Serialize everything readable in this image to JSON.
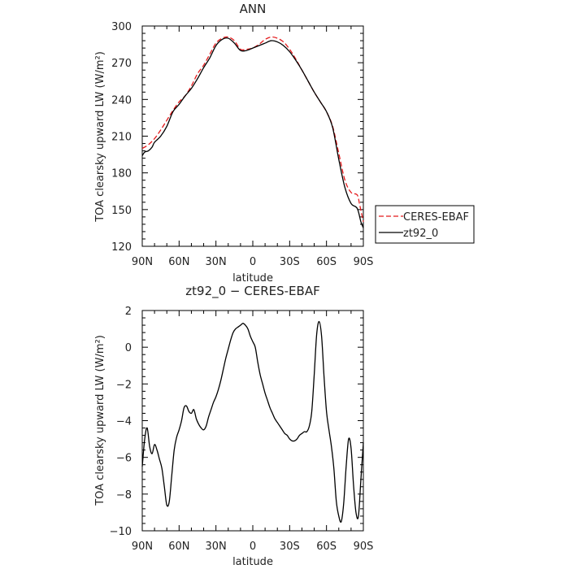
{
  "chart_data": [
    {
      "type": "line",
      "title": "ANN",
      "xlabel": "latitude",
      "ylabel": "TOA clearsky upward LW (W/m²)",
      "xlim": [
        90,
        -90
      ],
      "ylim": [
        120,
        300
      ],
      "x_ticks": [
        90,
        60,
        30,
        0,
        -30,
        -60,
        -90
      ],
      "x_tick_labels": [
        "90N",
        "60N",
        "30N",
        "0",
        "30S",
        "60S",
        "90S"
      ],
      "y_ticks": [
        120,
        150,
        180,
        210,
        240,
        270,
        300
      ],
      "y_tick_labels": [
        "120",
        "150",
        "180",
        "210",
        "240",
        "270",
        "300"
      ],
      "legend_position": "outside-right",
      "series": [
        {
          "name": "CERES-EBAF",
          "color": "#e41a1c",
          "dash": "dashed",
          "x": [
            90,
            85,
            80,
            75,
            70,
            65,
            60,
            55,
            50,
            45,
            40,
            35,
            30,
            25,
            20,
            15,
            10,
            5,
            0,
            -5,
            -10,
            -15,
            -20,
            -25,
            -30,
            -35,
            -40,
            -45,
            -50,
            -55,
            -60,
            -65,
            -70,
            -75,
            -80,
            -85,
            -87,
            -90
          ],
          "y": [
            200,
            203,
            208,
            215,
            223,
            231,
            238,
            243,
            251,
            261,
            268,
            277,
            286,
            290,
            291,
            288,
            281,
            281,
            282,
            285,
            289,
            291,
            290,
            287,
            281,
            273,
            264,
            255,
            246,
            238,
            230,
            218,
            196,
            174,
            164,
            162,
            154,
            140
          ]
        },
        {
          "name": "zt92_0",
          "color": "#000000",
          "dash": "solid",
          "x": [
            90,
            88,
            85,
            82,
            80,
            75,
            70,
            65,
            60,
            55,
            50,
            45,
            40,
            35,
            30,
            25,
            20,
            15,
            10,
            5,
            0,
            -5,
            -10,
            -15,
            -20,
            -25,
            -30,
            -35,
            -40,
            -45,
            -50,
            -55,
            -60,
            -65,
            -70,
            -75,
            -80,
            -85,
            -88,
            -90
          ],
          "y": [
            194,
            197,
            198,
            201,
            205,
            210,
            218,
            230,
            236,
            243,
            249,
            257,
            266,
            274,
            284,
            289,
            290,
            286,
            280,
            280,
            282,
            284,
            286,
            288,
            287,
            284,
            279,
            272,
            264,
            255,
            246,
            238,
            230,
            217,
            191,
            168,
            155,
            151,
            140,
            135
          ]
        }
      ]
    },
    {
      "type": "line",
      "title": "zt92_0 − CERES-EBAF",
      "xlabel": "latitude",
      "ylabel": "TOA clearsky upward LW (W/m²)",
      "xlim": [
        90,
        -90
      ],
      "ylim": [
        -10,
        2
      ],
      "x_ticks": [
        90,
        60,
        30,
        0,
        -30,
        -60,
        -90
      ],
      "x_tick_labels": [
        "90N",
        "60N",
        "30N",
        "0",
        "30S",
        "60S",
        "90S"
      ],
      "y_ticks": [
        -10,
        -8,
        -6,
        -4,
        -2,
        0,
        2
      ],
      "y_tick_labels": [
        "−10",
        "−8",
        "−6",
        "−4",
        "−2",
        "0",
        "2"
      ],
      "series": [
        {
          "color": "#000000",
          "dash": "solid",
          "x": [
            90,
            88,
            86,
            84,
            82,
            80,
            78,
            76,
            74,
            72,
            70,
            68,
            66,
            64,
            62,
            60,
            58,
            56,
            54,
            52,
            50,
            48,
            46,
            44,
            42,
            40,
            38,
            36,
            34,
            32,
            30,
            28,
            26,
            24,
            22,
            20,
            18,
            16,
            14,
            12,
            10,
            8,
            6,
            4,
            2,
            0,
            -2,
            -4,
            -6,
            -8,
            -10,
            -12,
            -14,
            -16,
            -18,
            -20,
            -22,
            -24,
            -26,
            -28,
            -30,
            -32,
            -34,
            -36,
            -38,
            -40,
            -42,
            -44,
            -46,
            -48,
            -50,
            -52,
            -54,
            -56,
            -58,
            -60,
            -62,
            -64,
            -66,
            -68,
            -70,
            -72,
            -74,
            -76,
            -78,
            -80,
            -82,
            -84,
            -86,
            -88,
            -90
          ],
          "y": [
            -6.5,
            -5.0,
            -4.4,
            -5.4,
            -5.8,
            -5.3,
            -5.6,
            -6.1,
            -6.6,
            -7.6,
            -8.6,
            -8.4,
            -7.0,
            -5.6,
            -4.9,
            -4.5,
            -4.0,
            -3.3,
            -3.2,
            -3.5,
            -3.6,
            -3.4,
            -3.9,
            -4.2,
            -4.4,
            -4.5,
            -4.3,
            -3.8,
            -3.4,
            -3.0,
            -2.7,
            -2.3,
            -1.8,
            -1.2,
            -0.6,
            -0.1,
            0.4,
            0.8,
            1.0,
            1.1,
            1.2,
            1.3,
            1.2,
            1.0,
            0.6,
            0.3,
            0.0,
            -0.8,
            -1.5,
            -2.0,
            -2.5,
            -2.9,
            -3.3,
            -3.6,
            -3.9,
            -4.1,
            -4.3,
            -4.5,
            -4.7,
            -4.8,
            -5.0,
            -5.1,
            -5.1,
            -5.0,
            -4.8,
            -4.7,
            -4.6,
            -4.6,
            -4.3,
            -3.5,
            -1.5,
            0.7,
            1.4,
            0.6,
            -1.6,
            -3.5,
            -4.5,
            -5.4,
            -6.6,
            -8.4,
            -9.2,
            -9.5,
            -8.5,
            -6.5,
            -5.0,
            -5.5,
            -7.5,
            -9.0,
            -9.2,
            -7.2,
            -5.2
          ]
        }
      ]
    }
  ]
}
